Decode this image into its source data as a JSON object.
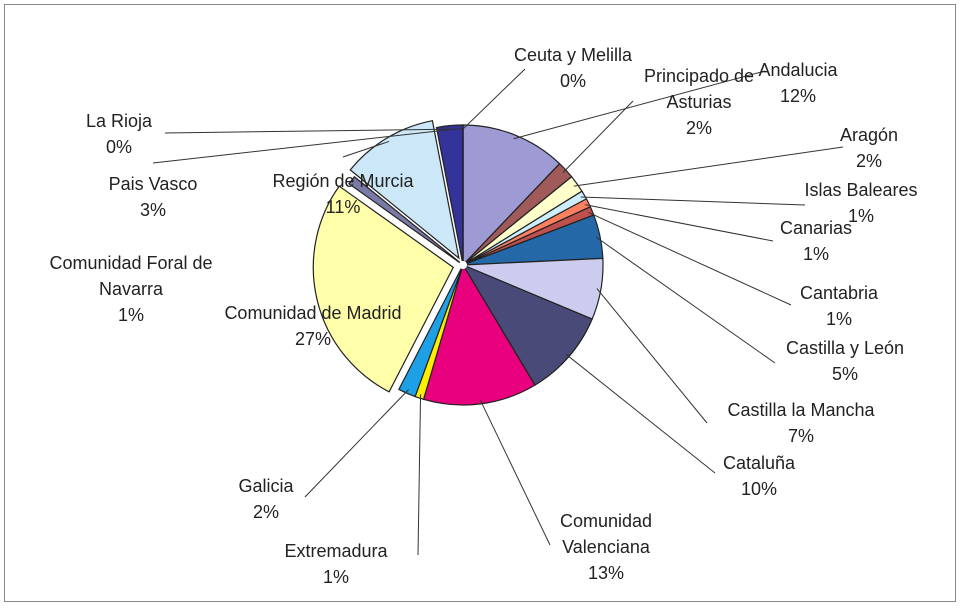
{
  "chart_data": {
    "type": "pie",
    "categories": [
      "Andalucia",
      "Principado de Asturias",
      "Aragón",
      "Islas Baleares",
      "Canarias",
      "Cantabria",
      "Castilla y León",
      "Castilla la Mancha",
      "Cataluña",
      "Comunidad Valenciana",
      "Extremadura",
      "Galicia",
      "Comunidad de Madrid",
      "Comunidad Foral de Navarra",
      "Región de Murcia",
      "Pais Vasco",
      "La Rioja",
      "Ceuta y Melilla"
    ],
    "values": [
      12,
      2,
      2,
      1,
      1,
      1,
      5,
      7,
      10,
      13,
      1,
      2,
      27,
      1,
      11,
      3,
      0,
      0
    ],
    "value_labels": [
      "12%",
      "2%",
      "2%",
      "1%",
      "1%",
      "1%",
      "5%",
      "7%",
      "10%",
      "13%",
      "1%",
      "2%",
      "27%",
      "1%",
      "11%",
      "3%",
      "0%",
      "0%"
    ],
    "colors": [
      "#9d9ad4",
      "#a05a5a",
      "#ffffcc",
      "#cceeff",
      "#ff8060",
      "#c0504d",
      "#2468a8",
      "#ccccee",
      "#4a4a78",
      "#e8007e",
      "#ffee00",
      "#1ea0e6",
      "#ffffaa",
      "#7a7aa8",
      "#cce8f8",
      "#333399",
      "#2a6a8a",
      "#3366cc"
    ]
  }
}
